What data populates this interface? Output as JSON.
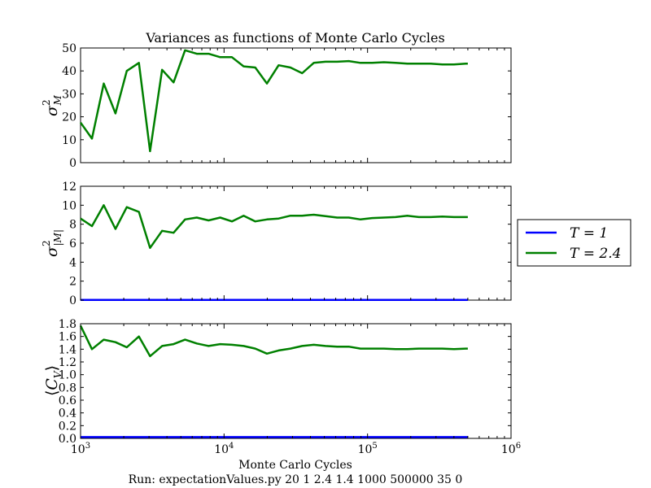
{
  "title": "Variances as functions of Monte Carlo Cycles",
  "xlabel": "Monte Carlo Cycles",
  "footer": "Run: expectationValues.py 20 1 2.4 1.4 1000 500000 35 0",
  "legend": {
    "placement": "right of middle panel",
    "entries": [
      {
        "label": "T = 1",
        "color": "#0000ff"
      },
      {
        "label": "T = 2.4",
        "color": "#008000"
      }
    ]
  },
  "chart_data": {
    "type": "line",
    "xscale": "log",
    "xlim": [
      1000,
      1000000
    ],
    "x_ticks": [
      1000,
      10000,
      100000,
      1000000
    ],
    "x_tick_labels": [
      {
        "base": "10",
        "exp": "3"
      },
      {
        "base": "10",
        "exp": "4"
      },
      {
        "base": "10",
        "exp": "5"
      },
      {
        "base": "10",
        "exp": "6"
      }
    ],
    "x": [
      1000,
      1200,
      1450,
      1750,
      2100,
      2550,
      3050,
      3700,
      4450,
      5350,
      6450,
      7800,
      9400,
      11350,
      13700,
      16500,
      19900,
      24000,
      29000,
      35000,
      42200,
      50900,
      61400,
      74000,
      89300,
      107700,
      130000,
      156800,
      189100,
      228100,
      275200,
      332000,
      400500,
      483200,
      500000
    ],
    "panels": [
      {
        "ylabel": "σ²_M",
        "ylabel_main": "σ",
        "ylabel_sup": "2",
        "ylabel_sub": "M",
        "ylim": [
          0,
          50
        ],
        "y_ticks": [
          "0",
          "10",
          "20",
          "30",
          "40",
          "50"
        ],
        "series": [
          {
            "name": "T = 1",
            "color": "#0000ff",
            "values": null
          },
          {
            "name": "T = 2.4",
            "color": "#008000",
            "values": [
              17.5,
              10.5,
              34.5,
              21.5,
              40,
              43.5,
              5,
              40.5,
              35,
              49,
              47.5,
              47.5,
              46,
              46,
              42,
              41.5,
              34.5,
              42.5,
              41.5,
              39,
              43.5,
              44,
              44,
              44.3,
              43.5,
              43.5,
              43.8,
              43.5,
              43.2,
              43.2,
              43.2,
              42.8,
              42.8,
              43.2,
              43.2
            ]
          }
        ]
      },
      {
        "ylabel": "σ²_|M|",
        "ylabel_main": "σ",
        "ylabel_sup": "2",
        "ylabel_sub": "|M|",
        "ylim": [
          0,
          12
        ],
        "y_ticks": [
          "0",
          "2",
          "4",
          "6",
          "8",
          "10",
          "12"
        ],
        "series": [
          {
            "name": "T = 1",
            "color": "#0000ff",
            "values": [
              0.02,
              0.02,
              0.02,
              0.02,
              0.02,
              0.02,
              0.02,
              0.02,
              0.02,
              0.02,
              0.02,
              0.02,
              0.02,
              0.02,
              0.02,
              0.02,
              0.02,
              0.02,
              0.02,
              0.02,
              0.02,
              0.02,
              0.02,
              0.02,
              0.02,
              0.02,
              0.02,
              0.02,
              0.02,
              0.02,
              0.02,
              0.02,
              0.02,
              0.02,
              0.02
            ]
          },
          {
            "name": "T = 2.4",
            "color": "#008000",
            "values": [
              8.6,
              7.8,
              10,
              7.5,
              9.8,
              9.3,
              5.5,
              7.3,
              7.1,
              8.5,
              8.7,
              8.4,
              8.7,
              8.3,
              8.9,
              8.3,
              8.5,
              8.6,
              8.9,
              8.9,
              9,
              8.85,
              8.7,
              8.7,
              8.5,
              8.65,
              8.7,
              8.75,
              8.9,
              8.75,
              8.75,
              8.8,
              8.75,
              8.75,
              8.75
            ]
          }
        ]
      },
      {
        "ylabel": "⟨C_V⟩",
        "ylabel_main": "C",
        "ylabel_sub": "V",
        "ylim": [
          0,
          1.8
        ],
        "y_ticks": [
          "0.0",
          "0.2",
          "0.4",
          "0.6",
          "0.8",
          "1.0",
          "1.2",
          "1.4",
          "1.6",
          "1.8"
        ],
        "series": [
          {
            "name": "T = 1",
            "color": "#0000ff",
            "values": [
              0.02,
              0.02,
              0.02,
              0.02,
              0.02,
              0.02,
              0.02,
              0.02,
              0.02,
              0.02,
              0.02,
              0.02,
              0.02,
              0.02,
              0.02,
              0.02,
              0.02,
              0.02,
              0.02,
              0.02,
              0.02,
              0.02,
              0.02,
              0.02,
              0.02,
              0.02,
              0.02,
              0.02,
              0.02,
              0.02,
              0.02,
              0.02,
              0.02,
              0.02,
              0.02
            ]
          },
          {
            "name": "T = 2.4",
            "color": "#008000",
            "values": [
              1.77,
              1.4,
              1.55,
              1.51,
              1.43,
              1.6,
              1.29,
              1.45,
              1.48,
              1.55,
              1.49,
              1.45,
              1.48,
              1.47,
              1.45,
              1.41,
              1.33,
              1.38,
              1.41,
              1.45,
              1.47,
              1.45,
              1.44,
              1.44,
              1.41,
              1.41,
              1.41,
              1.4,
              1.4,
              1.41,
              1.41,
              1.41,
              1.4,
              1.41,
              1.41
            ]
          }
        ]
      }
    ]
  }
}
